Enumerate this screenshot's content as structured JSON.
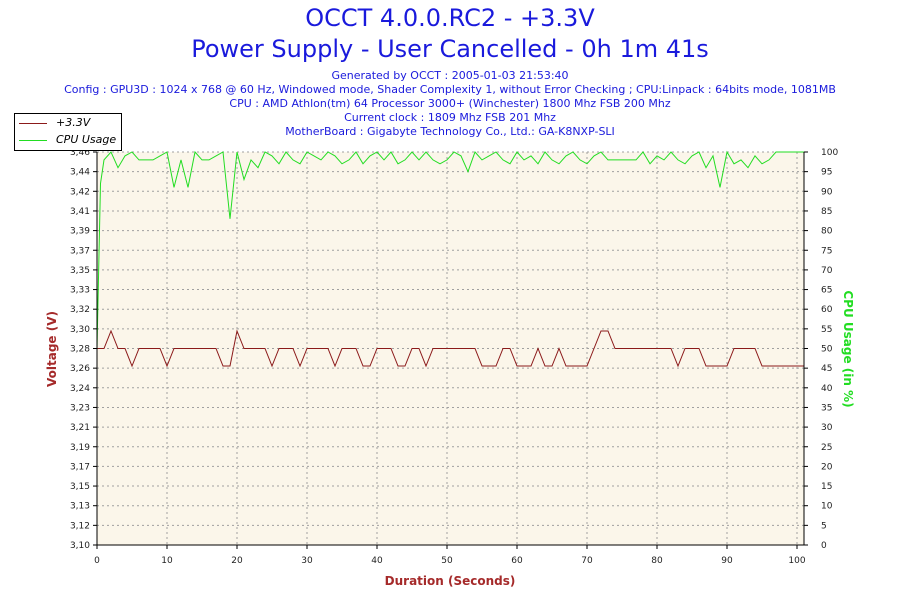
{
  "header": {
    "title_line1": "OCCT 4.0.0.RC2 - +3.3V",
    "title_line2": "Power Supply - User Cancelled - 0h 1m 41s",
    "info_lines": [
      "Generated by OCCT : 2005-01-03 21:53:40",
      "Config : GPU3D : 1024 x 768 @ 60 Hz, Windowed mode, Shader Complexity 1, without Error Checking ; CPU:Linpack : 64bits mode, 1081MB",
      "CPU : AMD Athlon(tm) 64 Processor 3000+ (Winchester) 1800 Mhz FSB 200 Mhz",
      "Current clock : 1809 Mhz FSB 201 Mhz",
      "MotherBoard : Gigabyte Technology Co., Ltd.: GA-K8NXP-SLI"
    ]
  },
  "legend": {
    "items": [
      {
        "label": "+3.3V",
        "color": "#8b1a1a"
      },
      {
        "label": "CPU Usage",
        "color": "#22dd22"
      }
    ]
  },
  "colors": {
    "plot_background": "#fbf6ea",
    "grid": "#a0a0a0",
    "voltage_line": "#8b1a1a",
    "cpu_line": "#22dd22",
    "xlabel": "#a52a2a",
    "ylabel_left": "#a52a2a",
    "ylabel_right": "#22dd22"
  },
  "chart_data": {
    "type": "line",
    "title": "OCCT 4.0.0.RC2 - +3.3V",
    "xlabel": "Duration (Seconds)",
    "ylabel": "Voltage (V)",
    "ylabel_right": "CPU Usage (in %)",
    "xlim": [
      0,
      101
    ],
    "ylim": [
      3.1,
      3.46
    ],
    "ylim_right": [
      0,
      100
    ],
    "x_ticks": [
      "0",
      "10",
      "20",
      "30",
      "40",
      "50",
      "60",
      "70",
      "80",
      "90",
      "100"
    ],
    "y_ticks": [
      "3,10",
      "3,12",
      "3,13",
      "3,15",
      "3,17",
      "3,19",
      "3,21",
      "3,23",
      "3,24",
      "3,26",
      "3,28",
      "3,30",
      "3,32",
      "3,33",
      "3,35",
      "3,37",
      "3,39",
      "3,41",
      "3,42",
      "3,44",
      "3,46"
    ],
    "y_ticks_right": [
      "0",
      "5",
      "10",
      "15",
      "20",
      "25",
      "30",
      "35",
      "40",
      "45",
      "50",
      "55",
      "60",
      "65",
      "70",
      "75",
      "80",
      "85",
      "90",
      "95",
      "100"
    ],
    "grid": true,
    "legend_position": "top-left",
    "series": [
      {
        "name": "+3.3V",
        "axis": "left",
        "x": [
          0,
          1,
          2,
          3,
          4,
          5,
          6,
          7,
          8,
          9,
          10,
          11,
          12,
          13,
          14,
          15,
          16,
          17,
          18,
          19,
          20,
          21,
          22,
          23,
          24,
          25,
          26,
          27,
          28,
          29,
          30,
          31,
          32,
          33,
          34,
          35,
          36,
          37,
          38,
          39,
          40,
          41,
          42,
          43,
          44,
          45,
          46,
          47,
          48,
          49,
          50,
          51,
          52,
          53,
          54,
          55,
          56,
          57,
          58,
          59,
          60,
          61,
          62,
          63,
          64,
          65,
          66,
          67,
          68,
          69,
          70,
          71,
          72,
          73,
          74,
          75,
          76,
          77,
          78,
          79,
          80,
          81,
          82,
          83,
          84,
          85,
          86,
          87,
          88,
          89,
          90,
          91,
          92,
          93,
          94,
          95,
          96,
          97,
          98,
          99,
          100,
          101
        ],
        "values": [
          3.28,
          3.28,
          3.296,
          3.28,
          3.28,
          3.264,
          3.28,
          3.28,
          3.28,
          3.28,
          3.264,
          3.28,
          3.28,
          3.28,
          3.28,
          3.28,
          3.28,
          3.28,
          3.264,
          3.264,
          3.296,
          3.28,
          3.28,
          3.28,
          3.28,
          3.264,
          3.28,
          3.28,
          3.28,
          3.264,
          3.28,
          3.28,
          3.28,
          3.28,
          3.264,
          3.28,
          3.28,
          3.28,
          3.264,
          3.264,
          3.28,
          3.28,
          3.28,
          3.264,
          3.264,
          3.28,
          3.28,
          3.264,
          3.28,
          3.28,
          3.28,
          3.28,
          3.28,
          3.28,
          3.28,
          3.264,
          3.264,
          3.264,
          3.28,
          3.28,
          3.264,
          3.264,
          3.264,
          3.28,
          3.264,
          3.264,
          3.28,
          3.264,
          3.264,
          3.264,
          3.264,
          3.28,
          3.296,
          3.296,
          3.28,
          3.28,
          3.28,
          3.28,
          3.28,
          3.28,
          3.28,
          3.28,
          3.28,
          3.264,
          3.28,
          3.28,
          3.28,
          3.264,
          3.264,
          3.264,
          3.264,
          3.28,
          3.28,
          3.28,
          3.28,
          3.264,
          3.264,
          3.264,
          3.264,
          3.264,
          3.264,
          3.264
        ]
      },
      {
        "name": "CPU Usage",
        "axis": "right",
        "x": [
          0,
          0.5,
          1,
          2,
          3,
          4,
          5,
          6,
          7,
          8,
          9,
          10,
          11,
          12,
          13,
          14,
          15,
          16,
          17,
          18,
          19,
          20,
          21,
          22,
          23,
          24,
          25,
          26,
          27,
          28,
          29,
          30,
          31,
          32,
          33,
          34,
          35,
          36,
          37,
          38,
          39,
          40,
          41,
          42,
          43,
          44,
          45,
          46,
          47,
          48,
          49,
          50,
          51,
          52,
          53,
          54,
          55,
          56,
          57,
          58,
          59,
          60,
          61,
          62,
          63,
          64,
          65,
          66,
          67,
          68,
          69,
          70,
          71,
          72,
          73,
          74,
          75,
          76,
          77,
          78,
          79,
          80,
          81,
          82,
          83,
          84,
          85,
          86,
          87,
          88,
          89,
          90,
          91,
          92,
          93,
          94,
          95,
          96,
          97,
          98,
          99,
          100,
          101
        ],
        "values": [
          50,
          92,
          98,
          100,
          96,
          99,
          100,
          98,
          98,
          98,
          99,
          100,
          91,
          98,
          91,
          100,
          98,
          98,
          99,
          100,
          83,
          100,
          93,
          98,
          96,
          100,
          99,
          97,
          100,
          98,
          97,
          100,
          99,
          98,
          100,
          99,
          97,
          98,
          100,
          97,
          99,
          100,
          98,
          100,
          97,
          98,
          100,
          98,
          100,
          98,
          97,
          98,
          100,
          99,
          95,
          100,
          98,
          99,
          100,
          98,
          97,
          100,
          98,
          99,
          97,
          100,
          98,
          97,
          99,
          100,
          98,
          97,
          99,
          100,
          98,
          98,
          98,
          98,
          98,
          100,
          97,
          99,
          98,
          100,
          98,
          97,
          99,
          100,
          96,
          99,
          91,
          100,
          97,
          98,
          96,
          99,
          97,
          98,
          100,
          100,
          100,
          100,
          100
        ]
      }
    ]
  }
}
